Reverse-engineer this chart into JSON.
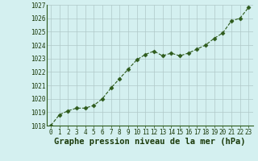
{
  "x": [
    0,
    1,
    2,
    3,
    4,
    5,
    6,
    7,
    8,
    9,
    10,
    11,
    12,
    13,
    14,
    15,
    16,
    17,
    18,
    19,
    20,
    21,
    22,
    23
  ],
  "y": [
    1018.0,
    1018.8,
    1019.1,
    1019.3,
    1019.3,
    1019.5,
    1020.0,
    1020.8,
    1021.5,
    1022.2,
    1022.9,
    1023.3,
    1023.55,
    1023.2,
    1023.4,
    1023.2,
    1023.4,
    1023.7,
    1024.0,
    1024.5,
    1024.9,
    1025.8,
    1026.0,
    1026.8
  ],
  "ylim": [
    1018,
    1027
  ],
  "yticks": [
    1018,
    1019,
    1020,
    1021,
    1022,
    1023,
    1024,
    1025,
    1026,
    1027
  ],
  "xticks": [
    0,
    1,
    2,
    3,
    4,
    5,
    6,
    7,
    8,
    9,
    10,
    11,
    12,
    13,
    14,
    15,
    16,
    17,
    18,
    19,
    20,
    21,
    22,
    23
  ],
  "line_color": "#2d5a1b",
  "marker": "D",
  "marker_size": 2.5,
  "bg_color": "#d4f0f0",
  "grid_color": "#b0c8c8",
  "xlabel": "Graphe pression niveau de la mer (hPa)",
  "xlabel_color": "#1a3a0a",
  "tick_label_color": "#1a3a0a",
  "tick_label_fontsize": 5.5,
  "xlabel_fontsize": 7.5,
  "linewidth": 0.8,
  "spine_color": "#2d5a1b"
}
